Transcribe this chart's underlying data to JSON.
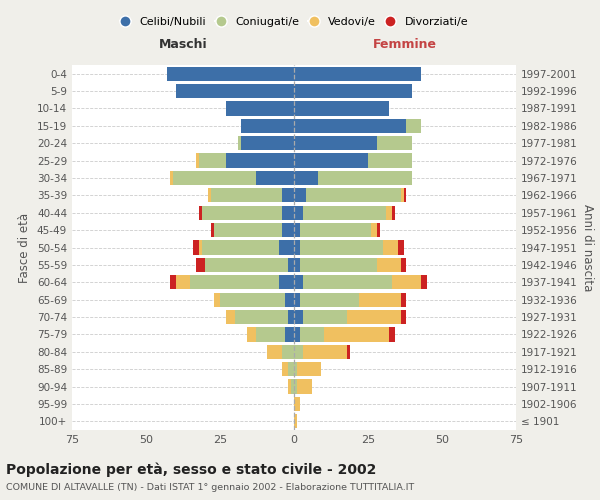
{
  "age_groups": [
    "100+",
    "95-99",
    "90-94",
    "85-89",
    "80-84",
    "75-79",
    "70-74",
    "65-69",
    "60-64",
    "55-59",
    "50-54",
    "45-49",
    "40-44",
    "35-39",
    "30-34",
    "25-29",
    "20-24",
    "15-19",
    "10-14",
    "5-9",
    "0-4"
  ],
  "birth_years": [
    "≤ 1901",
    "1902-1906",
    "1907-1911",
    "1912-1916",
    "1917-1921",
    "1922-1926",
    "1927-1931",
    "1932-1936",
    "1937-1941",
    "1942-1946",
    "1947-1951",
    "1952-1956",
    "1957-1961",
    "1962-1966",
    "1967-1971",
    "1972-1976",
    "1977-1981",
    "1982-1986",
    "1987-1991",
    "1992-1996",
    "1997-2001"
  ],
  "male": {
    "celibi": [
      0,
      0,
      0,
      0,
      0,
      3,
      2,
      3,
      5,
      2,
      5,
      4,
      4,
      4,
      13,
      23,
      18,
      18,
      23,
      40,
      43
    ],
    "coniugati": [
      0,
      0,
      1,
      2,
      4,
      10,
      18,
      22,
      30,
      28,
      26,
      23,
      27,
      24,
      28,
      9,
      1,
      0,
      0,
      0,
      0
    ],
    "vedovi": [
      0,
      0,
      1,
      2,
      5,
      3,
      3,
      2,
      5,
      0,
      1,
      0,
      0,
      1,
      1,
      1,
      0,
      0,
      0,
      0,
      0
    ],
    "divorziati": [
      0,
      0,
      0,
      0,
      0,
      0,
      0,
      0,
      2,
      3,
      2,
      1,
      1,
      0,
      0,
      0,
      0,
      0,
      0,
      0,
      0
    ]
  },
  "female": {
    "nubili": [
      0,
      0,
      0,
      0,
      0,
      2,
      3,
      2,
      3,
      2,
      2,
      2,
      3,
      4,
      8,
      25,
      28,
      38,
      32,
      40,
      43
    ],
    "coniugate": [
      0,
      0,
      1,
      1,
      3,
      8,
      15,
      20,
      30,
      26,
      28,
      24,
      28,
      32,
      32,
      15,
      12,
      5,
      0,
      0,
      0
    ],
    "vedove": [
      1,
      2,
      5,
      8,
      15,
      22,
      18,
      14,
      10,
      8,
      5,
      2,
      2,
      1,
      0,
      0,
      0,
      0,
      0,
      0,
      0
    ],
    "divorziate": [
      0,
      0,
      0,
      0,
      1,
      2,
      2,
      2,
      2,
      2,
      2,
      1,
      1,
      1,
      0,
      0,
      0,
      0,
      0,
      0,
      0
    ]
  },
  "colors": {
    "celibi": "#3d6fa8",
    "coniugati": "#b5c98e",
    "vedovi": "#f0c060",
    "divorziati": "#cc2222"
  },
  "xlim": 75,
  "title": "Popolazione per età, sesso e stato civile - 2002",
  "subtitle": "COMUNE DI ALTAVALLE (TN) - Dati ISTAT 1° gennaio 2002 - Elaborazione TUTTITALIA.IT",
  "xlabel_left": "Maschi",
  "xlabel_right": "Femmine",
  "ylabel_left": "Fasce di età",
  "ylabel_right": "Anni di nascita",
  "bg_color": "#f0efea",
  "plot_bg": "#ffffff"
}
